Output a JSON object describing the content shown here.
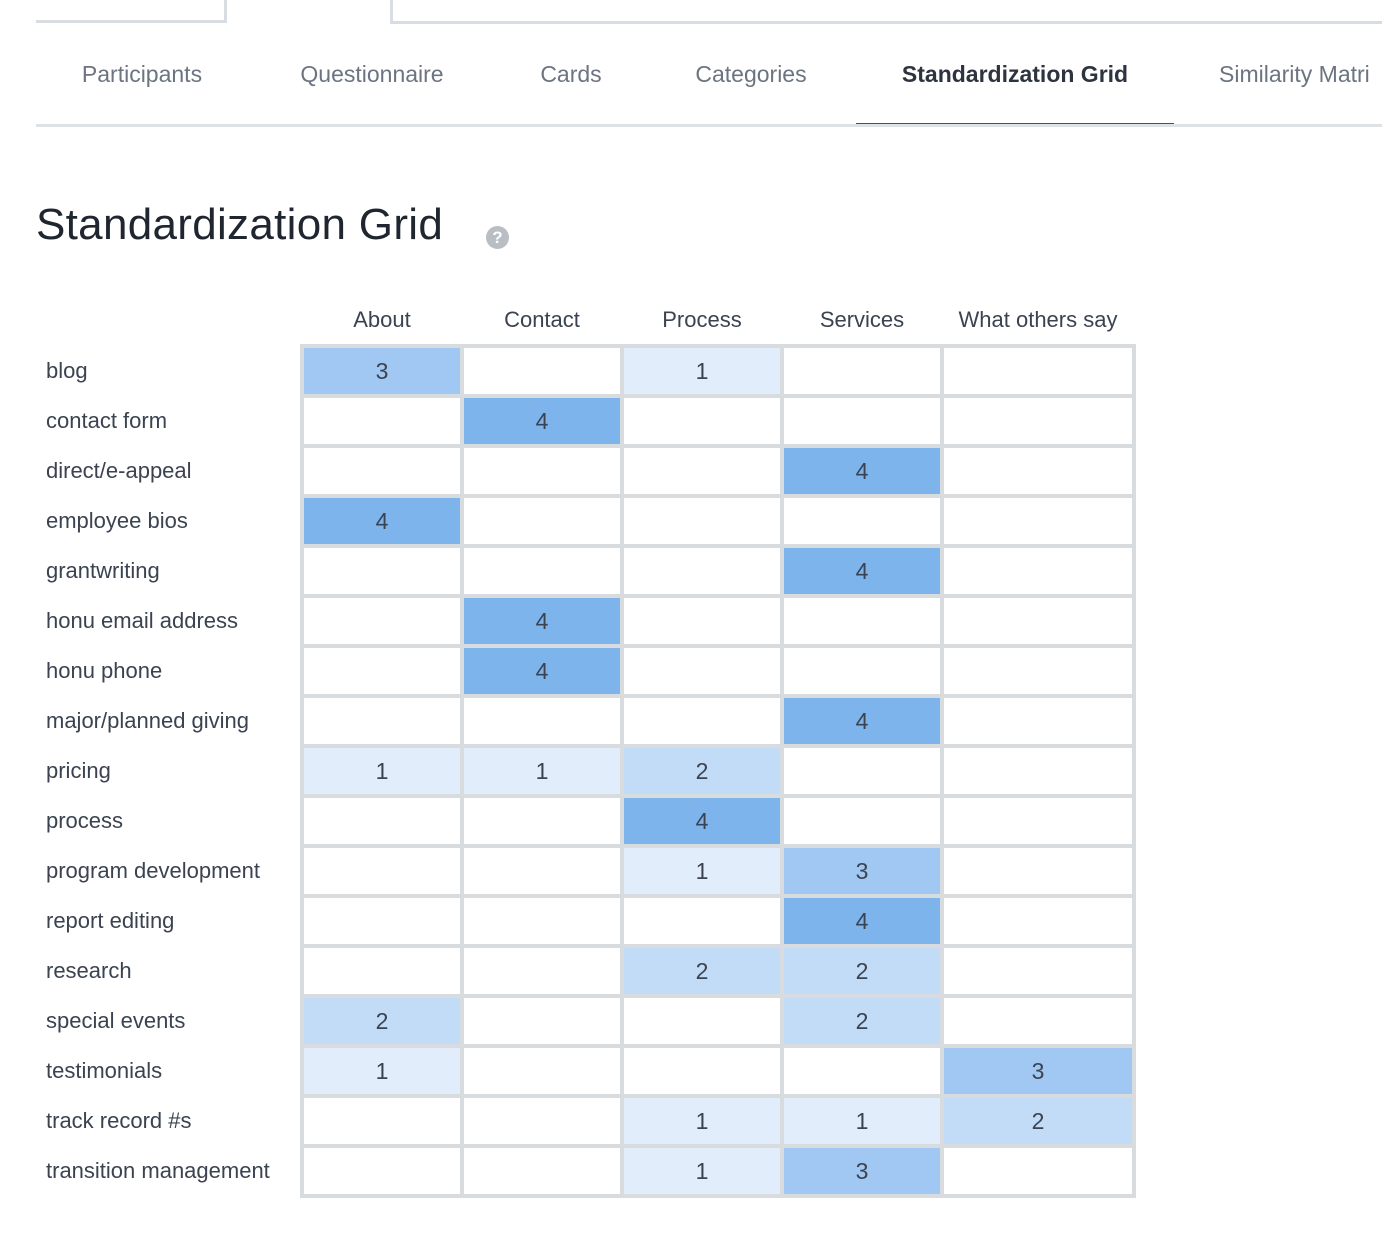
{
  "tabs": [
    {
      "label": "Participants",
      "active": false
    },
    {
      "label": "Questionnaire",
      "active": false
    },
    {
      "label": "Cards",
      "active": false
    },
    {
      "label": "Categories",
      "active": false
    },
    {
      "label": "Standardization Grid",
      "active": true
    },
    {
      "label": "Similarity Matri",
      "active": false
    }
  ],
  "page": {
    "title": "Standardization Grid",
    "help_glyph": "?"
  },
  "grid": {
    "columns": [
      "About",
      "Contact",
      "Process",
      "Services",
      "What others say"
    ],
    "rows": [
      {
        "label": "blog",
        "values": [
          3,
          null,
          1,
          null,
          null
        ]
      },
      {
        "label": "contact form",
        "values": [
          null,
          4,
          null,
          null,
          null
        ]
      },
      {
        "label": "direct/e-appeal",
        "values": [
          null,
          null,
          null,
          4,
          null
        ]
      },
      {
        "label": "employee bios",
        "values": [
          4,
          null,
          null,
          null,
          null
        ]
      },
      {
        "label": "grantwriting",
        "values": [
          null,
          null,
          null,
          4,
          null
        ]
      },
      {
        "label": "honu email address",
        "values": [
          null,
          4,
          null,
          null,
          null
        ]
      },
      {
        "label": "honu phone",
        "values": [
          null,
          4,
          null,
          null,
          null
        ]
      },
      {
        "label": "major/planned giving",
        "values": [
          null,
          null,
          null,
          4,
          null
        ]
      },
      {
        "label": "pricing",
        "values": [
          1,
          1,
          2,
          null,
          null
        ]
      },
      {
        "label": "process",
        "values": [
          null,
          null,
          4,
          null,
          null
        ]
      },
      {
        "label": "program development",
        "values": [
          null,
          null,
          1,
          3,
          null
        ]
      },
      {
        "label": "report editing",
        "values": [
          null,
          null,
          null,
          4,
          null
        ]
      },
      {
        "label": "research",
        "values": [
          null,
          null,
          2,
          2,
          null
        ]
      },
      {
        "label": "special events",
        "values": [
          2,
          null,
          null,
          2,
          null
        ]
      },
      {
        "label": "testimonials",
        "values": [
          1,
          null,
          null,
          null,
          3
        ]
      },
      {
        "label": "track record #s",
        "values": [
          null,
          null,
          1,
          1,
          2
        ]
      },
      {
        "label": "transition management",
        "values": [
          null,
          null,
          1,
          3,
          null
        ]
      }
    ]
  },
  "colors": {
    "level_1": "#e1edfa",
    "level_2": "#c2dcf7",
    "level_3": "#a0c8f2",
    "level_4": "#7eb4ec",
    "empty": "#ffffff",
    "grid_line": "#d9dcdf"
  }
}
